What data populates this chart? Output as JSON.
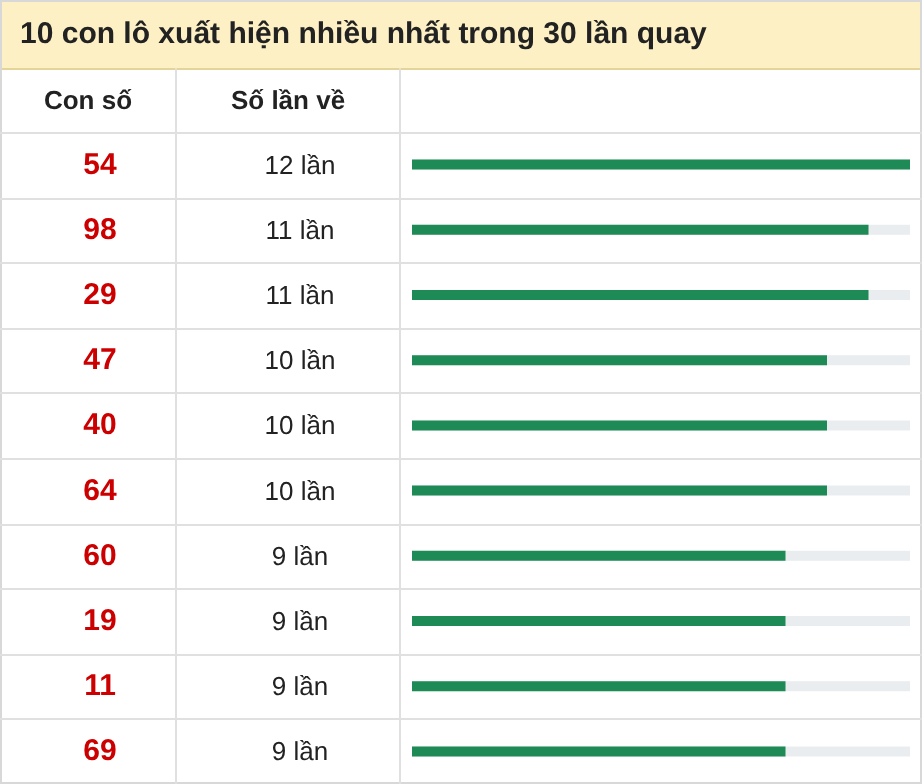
{
  "chart_data": {
    "type": "bar",
    "orientation": "horizontal",
    "title": "10 con lô xuất hiện nhiều nhất trong 30 lần quay",
    "ylabel": "Con số",
    "xlabel": "Số lần về",
    "categories": [
      "54",
      "98",
      "29",
      "47",
      "40",
      "64",
      "60",
      "19",
      "11",
      "69"
    ],
    "values": [
      12,
      11,
      11,
      10,
      10,
      10,
      9,
      9,
      9,
      9
    ],
    "color": "#1e8a55",
    "value_labels": [
      "12 lần",
      "11 lần",
      "11 lần",
      "10 lần",
      "10 lần",
      "10 lần",
      "9 lần",
      "9 lần",
      "9 lần",
      "9 lần"
    ]
  }
}
